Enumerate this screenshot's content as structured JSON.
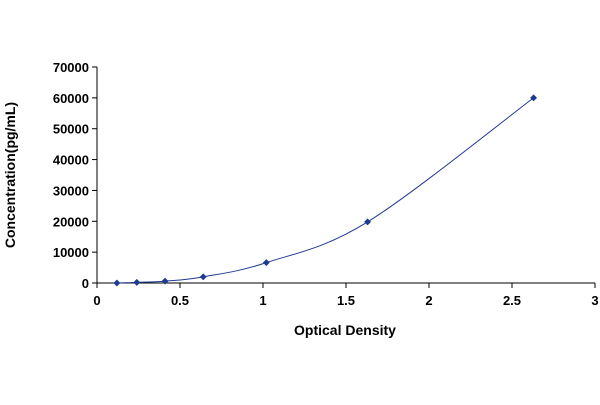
{
  "chart_data": {
    "type": "scatter",
    "title": "",
    "xlabel": "Optical Density",
    "ylabel": "Concentration(pg/mL)",
    "xlim": [
      0,
      3
    ],
    "ylim": [
      0,
      70000
    ],
    "xticks": [
      0,
      0.5,
      1,
      1.5,
      2,
      2.5,
      3
    ],
    "xtick_labels": [
      "0",
      "0.5",
      "1",
      "1.5",
      "2",
      "2.5",
      "3"
    ],
    "yticks": [
      0,
      10000,
      20000,
      30000,
      40000,
      50000,
      60000,
      70000
    ],
    "ytick_labels": [
      "0",
      "10000",
      "20000",
      "30000",
      "40000",
      "50000",
      "60000",
      "70000"
    ],
    "grid": false,
    "legend": "none",
    "series": [
      {
        "marker": "diamond",
        "color": "#1f3a93",
        "line_color": "#1f3a93",
        "x": [
          0.12,
          0.24,
          0.41,
          0.64,
          1.02,
          1.63,
          2.63
        ],
        "y": [
          0,
          200,
          600,
          2000,
          6600,
          19800,
          60000
        ]
      }
    ]
  }
}
